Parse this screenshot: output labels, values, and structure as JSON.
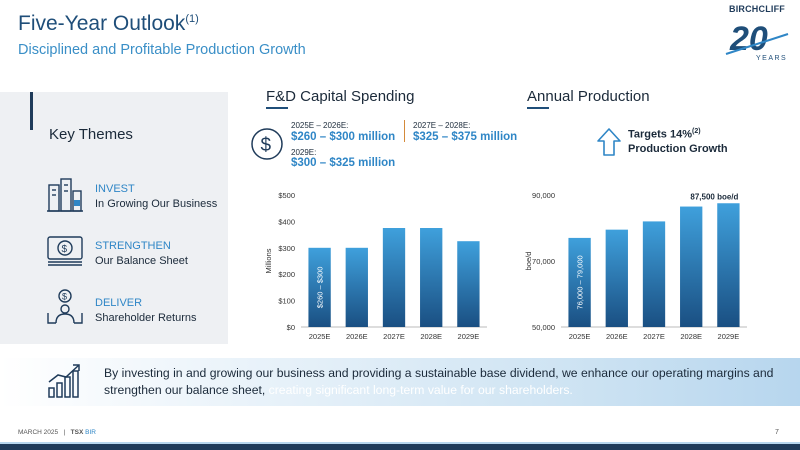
{
  "header": {
    "title": "Five-Year Outlook",
    "title_sup": "(1)",
    "subtitle": "Disciplined and Profitable Production Growth"
  },
  "logo": {
    "wordmark": "BIRCHCLIFF",
    "number": "20",
    "years": "YEARS"
  },
  "themes": {
    "title": "Key Themes",
    "items": [
      {
        "head": "INVEST",
        "sub": "In Growing Our Business",
        "icon": "buildings-icon"
      },
      {
        "head": "STRENGTHEN",
        "sub": "Our Balance Sheet",
        "icon": "money-icon"
      },
      {
        "head": "DELIVER",
        "sub": "Shareholder Returns",
        "icon": "person-dollar-icon"
      }
    ]
  },
  "capital": {
    "title": "F&D Capital Spending",
    "icon": "dollar-circle-icon",
    "g1_label": "2025E – 2026E:",
    "g1_value": "$260 – $300 million",
    "g2_label": "2029E:",
    "g2_value": "$300 – $325 million",
    "g3_label": "2027E – 2028E:",
    "g3_value": "$325 – $375 million"
  },
  "production": {
    "title": "Annual Production",
    "icon": "up-arrow-icon",
    "target_line1": "Targets 14%",
    "target_sup": "(2)",
    "target_line2": "Production Growth"
  },
  "chart_data": [
    {
      "type": "bar",
      "categories": [
        "2025E",
        "2026E",
        "2027E",
        "2028E",
        "2029E"
      ],
      "values": [
        300,
        300,
        375,
        375,
        325
      ],
      "ylabel": "Millions",
      "ylim": [
        0,
        500
      ],
      "yticks": [
        0,
        100,
        200,
        300,
        400,
        500
      ],
      "ytick_labels": [
        "$0",
        "$100",
        "$200",
        "$300",
        "$400",
        "$500"
      ],
      "bar_annotation": "$260 – $300",
      "grid": false
    },
    {
      "type": "bar",
      "categories": [
        "2025E",
        "2026E",
        "2027E",
        "2028E",
        "2029E"
      ],
      "values": [
        77000,
        79500,
        82000,
        86500,
        87500
      ],
      "ylabel": "boe/d",
      "ylim": [
        50000,
        90000
      ],
      "yticks": [
        50000,
        70000,
        90000
      ],
      "ytick_labels": [
        "50,000",
        "70,000",
        "90,000"
      ],
      "bar_annotation": "76,000 – 79,000",
      "top_label": "87,500 boe/d",
      "grid": false
    }
  ],
  "banner": {
    "text": "By investing in and growing our business and providing a sustainable base dividend, we enhance our operating margins and strengthen our balance sheet,",
    "highlight": " creating significant long-term value for our shareholders.",
    "icon": "growth-chart-icon"
  },
  "footer": {
    "date": "MARCH 2025",
    "sep": "|",
    "exchange": "TSX",
    "ticker": "BIR",
    "page": "7"
  },
  "colors": {
    "navy": "#1f3b5a",
    "accent": "#2f86c6",
    "bar_top": "#3fa0dc",
    "bar_bottom": "#1a4f82"
  }
}
